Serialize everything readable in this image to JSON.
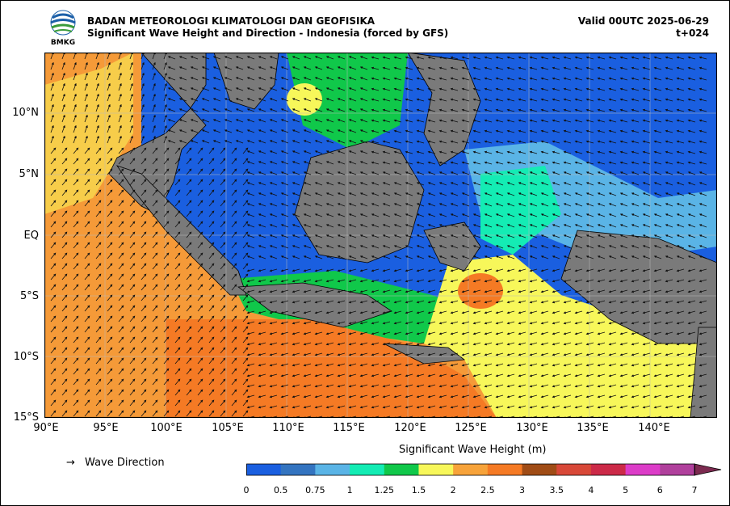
{
  "agency": "BADAN METEOROLOGI KLIMATOLOGI DAN GEOFISIKA",
  "product": "Significant Wave Height and Direction - Indonesia (forced by GFS)",
  "valid": "Valid 00UTC 2025-06-29",
  "lead": "t+024",
  "logo_text": "BMKG",
  "lat_labels": [
    "10°N",
    "5°N",
    "EQ",
    "5°S",
    "10°S",
    "15°S"
  ],
  "lon_labels": [
    "90°E",
    "95°E",
    "100°E",
    "105°E",
    "110°E",
    "115°E",
    "120°E",
    "125°E",
    "130°E",
    "135°E",
    "140°E"
  ],
  "legend": {
    "arrow": "→",
    "wave_direction": "Wave Direction"
  },
  "colorbar": {
    "title": "Significant Wave Height (m)",
    "ticks": [
      "0",
      "0.5",
      "0.75",
      "1",
      "1.25",
      "1.5",
      "2",
      "2.5",
      "3",
      "3.5",
      "4",
      "5",
      "6",
      "7"
    ],
    "colors": [
      "#1a5fe0",
      "#3374c0",
      "#5ab4e6",
      "#14ecb4",
      "#10c84a",
      "#f7f75a",
      "#f7a33a",
      "#f57a24",
      "#a04c16",
      "#d84838",
      "#cc2a48",
      "#dc3cc8",
      "#b0409c",
      "#7c2a50"
    ]
  }
}
